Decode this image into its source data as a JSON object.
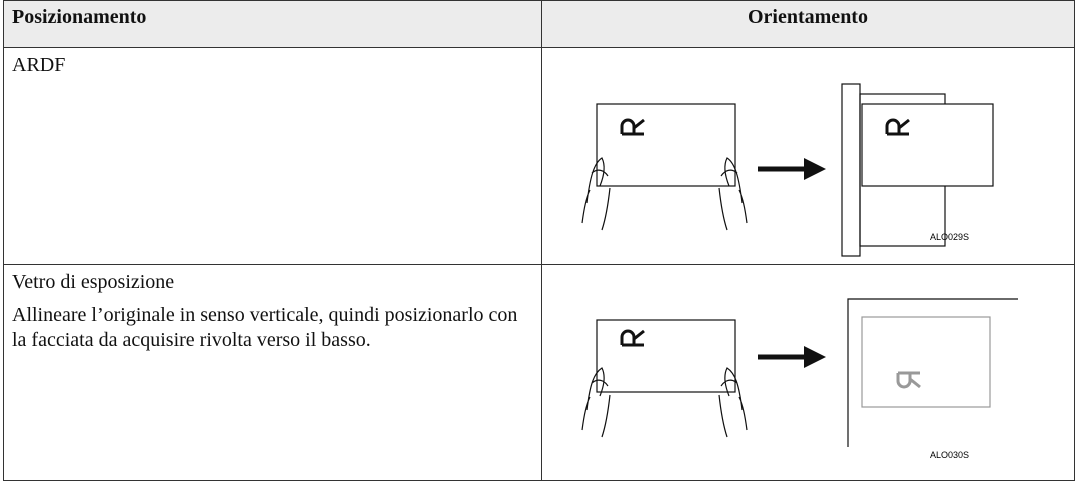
{
  "table": {
    "header": [
      "Posizionamento",
      "Orientamento"
    ],
    "rows": [
      {
        "position": "ARDF",
        "caption": "ALO029S"
      },
      {
        "position": "Vetro di esposizione",
        "note": "Allineare l’originale in senso verticale, quindi posizionarlo con la facciata da acquisire rivolta verso il basso.",
        "caption": "ALO030S"
      }
    ]
  }
}
